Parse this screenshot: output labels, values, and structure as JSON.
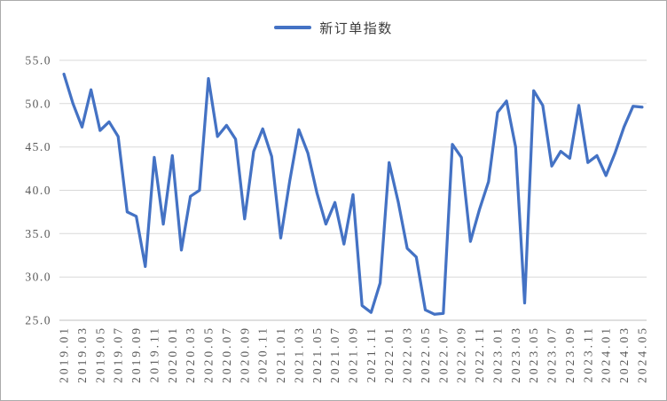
{
  "legend": {
    "label": "新订单指数"
  },
  "colors": {
    "line": "#4472C4",
    "grid": "#D9D9D9",
    "axis_line": "#BFBFBF",
    "axis_text": "#595959",
    "legend_text": "#3B3B3B",
    "background": "#FFFFFF",
    "border": "#ABABAB"
  },
  "chart_data": {
    "type": "line",
    "title": "新订单指数",
    "legend_position": "top-center",
    "grid": "horizontal",
    "ylim": [
      25.0,
      55.0
    ],
    "y_ticks": [
      25,
      30,
      35,
      40,
      45,
      50,
      55
    ],
    "y_tick_labels": [
      "25.0",
      "30.0",
      "35.0",
      "40.0",
      "45.0",
      "50.0",
      "55.0"
    ],
    "x_tick_interval": 2,
    "x": [
      "2019.01",
      "2019.02",
      "2019.03",
      "2019.04",
      "2019.05",
      "2019.06",
      "2019.07",
      "2019.08",
      "2019.09",
      "2019.10",
      "2019.11",
      "2019.12",
      "2020.01",
      "2020.02",
      "2020.03",
      "2020.04",
      "2020.05",
      "2020.06",
      "2020.07",
      "2020.08",
      "2020.09",
      "2020.10",
      "2020.11",
      "2020.12",
      "2021.01",
      "2021.02",
      "2021.03",
      "2021.04",
      "2021.05",
      "2021.06",
      "2021.07",
      "2021.08",
      "2021.09",
      "2021.10",
      "2021.11",
      "2021.12",
      "2022.01",
      "2022.02",
      "2022.03",
      "2022.04",
      "2022.05",
      "2022.06",
      "2022.07",
      "2022.08",
      "2022.09",
      "2022.10",
      "2022.11",
      "2022.12",
      "2023.01",
      "2023.02",
      "2023.03",
      "2023.04",
      "2023.05",
      "2023.06",
      "2023.07",
      "2023.08",
      "2023.09",
      "2023.10",
      "2023.11",
      "2023.12",
      "2024.01",
      "2024.02",
      "2024.03",
      "2024.04",
      "2024.05"
    ],
    "series": [
      {
        "name": "新订单指数",
        "values": [
          53.4,
          50.0,
          47.3,
          51.6,
          46.9,
          47.9,
          46.2,
          37.5,
          37.0,
          31.2,
          43.8,
          36.1,
          44.0,
          33.1,
          39.3,
          40.0,
          52.9,
          46.2,
          47.5,
          45.9,
          36.7,
          44.5,
          47.1,
          43.9,
          34.5,
          41.1,
          47.0,
          44.3,
          39.7,
          36.1,
          38.6,
          33.8,
          39.5,
          26.7,
          25.9,
          29.3,
          43.2,
          38.7,
          33.3,
          32.3,
          26.2,
          25.7,
          25.8,
          45.3,
          43.8,
          34.1,
          37.8,
          41.0,
          49.0,
          50.3,
          45.0,
          27.0,
          51.5,
          49.8,
          42.8,
          44.5,
          43.7,
          49.8,
          43.2,
          44.0,
          41.7,
          44.3,
          47.3,
          49.7,
          49.6
        ]
      }
    ]
  }
}
